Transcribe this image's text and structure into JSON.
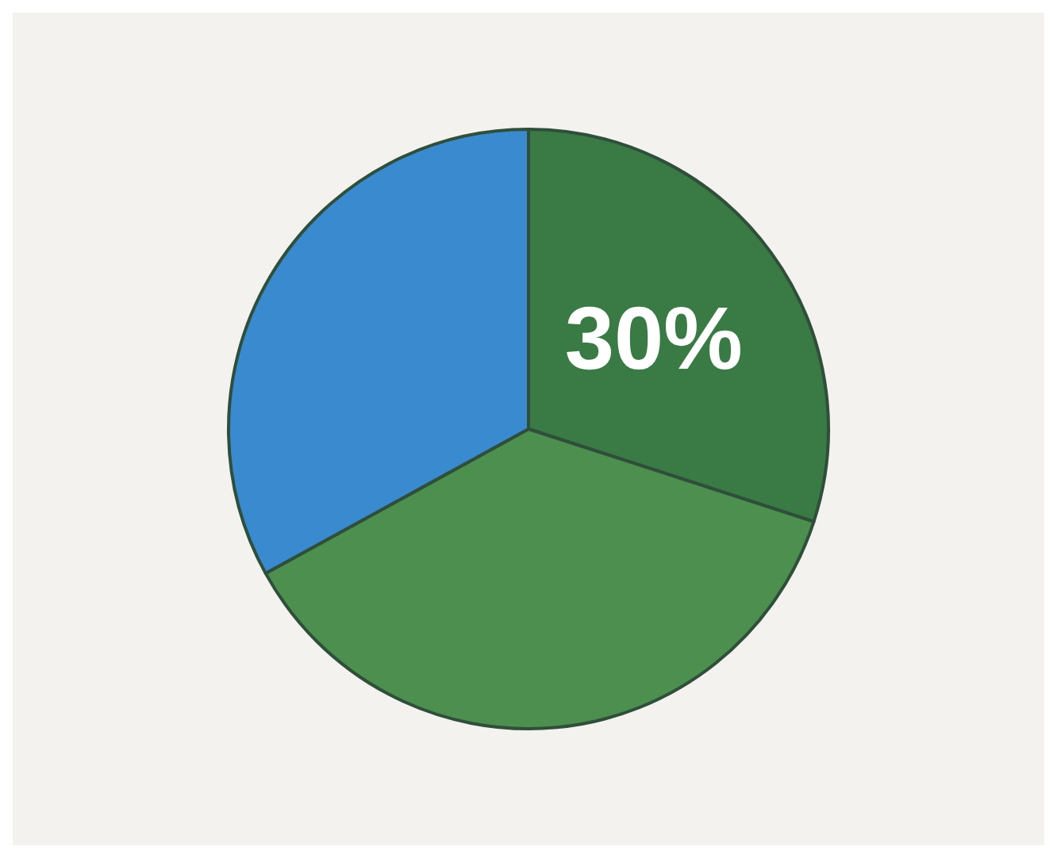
{
  "chart_data": {
    "type": "pie",
    "categories": [
      null,
      null,
      null
    ],
    "values": [
      30,
      37,
      33
    ],
    "colors": [
      "#3a7a45",
      "#4c8f4f",
      "#3a8ad0"
    ],
    "value_labels": [
      "30%",
      null,
      null
    ]
  }
}
